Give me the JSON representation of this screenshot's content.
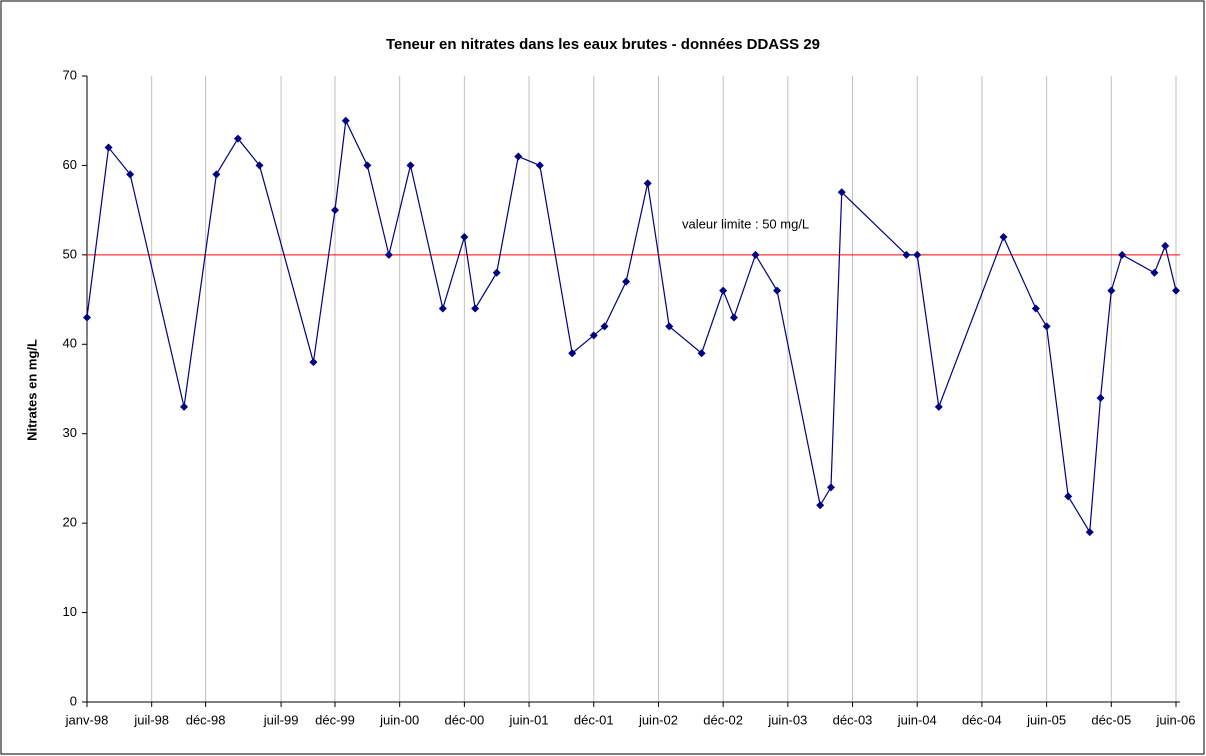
{
  "chart_data": {
    "type": "line",
    "title": "Teneur en nitrates dans les eaux brutes - données DDASS 29",
    "y_label": "Nitrates en mg/L",
    "x": [
      "1998-01",
      "1998-03",
      "1998-05",
      "1998-10",
      "1999-01",
      "1999-03",
      "1999-05",
      "1999-10",
      "1999-12",
      "2000-01",
      "2000-03",
      "2000-05",
      "2000-07",
      "2000-10",
      "2000-12",
      "2001-01",
      "2001-03",
      "2001-05",
      "2001-07",
      "2001-10",
      "2001-12",
      "2002-01",
      "2002-03",
      "2002-05",
      "2002-07",
      "2002-10",
      "2002-12",
      "2003-01",
      "2003-03",
      "2003-05",
      "2003-09",
      "2003-10",
      "2003-11",
      "2004-05",
      "2004-06",
      "2004-08",
      "2005-02",
      "2005-05",
      "2005-06",
      "2005-08",
      "2005-10",
      "2005-11",
      "2005-12",
      "2006-01",
      "2006-04",
      "2006-05",
      "2006-06"
    ],
    "values": [
      43,
      62,
      59,
      33,
      59,
      63,
      60,
      38,
      55,
      65,
      60,
      50,
      60,
      44,
      52,
      44,
      48,
      61,
      60,
      39,
      41,
      42,
      47,
      58,
      42,
      39,
      46,
      43,
      50,
      46,
      22,
      24,
      57,
      50,
      50,
      33,
      52,
      44,
      42,
      23,
      19,
      34,
      46,
      50,
      48,
      51,
      46
    ],
    "color": "#000080",
    "xlim": [
      "1998-01",
      "2006-06"
    ],
    "xticks": [
      {
        "value": "1998-01",
        "label": "janv-98"
      },
      {
        "value": "1998-07",
        "label": "juil-98"
      },
      {
        "value": "1998-12",
        "label": "déc-98"
      },
      {
        "value": "1999-07",
        "label": "juil-99"
      },
      {
        "value": "1999-12",
        "label": "déc-99"
      },
      {
        "value": "2000-06",
        "label": "juin-00"
      },
      {
        "value": "2000-12",
        "label": "déc-00"
      },
      {
        "value": "2001-06",
        "label": "juin-01"
      },
      {
        "value": "2001-12",
        "label": "déc-01"
      },
      {
        "value": "2002-06",
        "label": "juin-02"
      },
      {
        "value": "2002-12",
        "label": "déc-02"
      },
      {
        "value": "2003-06",
        "label": "juin-03"
      },
      {
        "value": "2003-12",
        "label": "déc-03"
      },
      {
        "value": "2004-06",
        "label": "juin-04"
      },
      {
        "value": "2004-12",
        "label": "déc-04"
      },
      {
        "value": "2005-06",
        "label": "juin-05"
      },
      {
        "value": "2005-12",
        "label": "déc-05"
      },
      {
        "value": "2006-06",
        "label": "juin-06"
      }
    ],
    "ylim": [
      0,
      70
    ],
    "yticks": [
      0,
      10,
      20,
      30,
      40,
      50,
      60,
      70
    ],
    "grid": "x",
    "reference": {
      "value": 50,
      "label": "valeur limite : 50 mg/L",
      "color": "#ff0000"
    }
  }
}
